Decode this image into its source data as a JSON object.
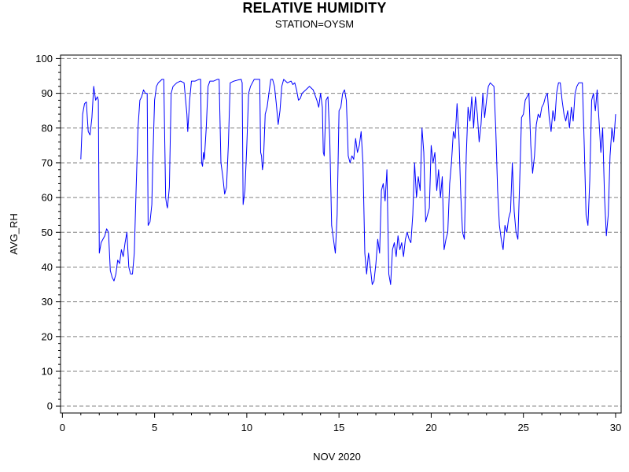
{
  "chart_data": {
    "type": "line",
    "title": "RELATIVE HUMIDITY",
    "subtitle": "STATION=OYSM",
    "xlabel": "NOV 2020",
    "ylabel": "AVG_RH",
    "xlim": [
      -0.1,
      30.3
    ],
    "ylim": [
      -2,
      101
    ],
    "x_ticks": [
      0,
      5,
      10,
      15,
      20,
      25,
      30
    ],
    "y_ticks": [
      0,
      10,
      20,
      30,
      40,
      50,
      60,
      70,
      80,
      90,
      100
    ],
    "grid": "dashed horizontal at y ticks",
    "line_color": "#0000ff",
    "series": [
      {
        "points": [
          [
            1.0,
            71
          ],
          [
            1.1,
            84
          ],
          [
            1.2,
            87
          ],
          [
            1.3,
            87.5
          ],
          [
            1.4,
            79
          ],
          [
            1.5,
            78
          ],
          [
            1.6,
            83
          ],
          [
            1.7,
            92
          ],
          [
            1.8,
            88
          ],
          [
            1.9,
            89
          ],
          [
            1.95,
            88
          ],
          [
            2.0,
            44
          ],
          [
            2.1,
            47
          ],
          [
            2.2,
            48
          ],
          [
            2.3,
            49
          ],
          [
            2.4,
            51
          ],
          [
            2.5,
            50
          ],
          [
            2.6,
            39
          ],
          [
            2.7,
            37
          ],
          [
            2.8,
            36
          ],
          [
            2.9,
            38
          ],
          [
            3.0,
            42
          ],
          [
            3.1,
            41
          ],
          [
            3.2,
            45
          ],
          [
            3.3,
            43
          ],
          [
            3.4,
            47
          ],
          [
            3.5,
            50
          ],
          [
            3.6,
            40
          ],
          [
            3.7,
            38
          ],
          [
            3.8,
            38
          ],
          [
            3.9,
            44
          ],
          [
            4.0,
            63
          ],
          [
            4.1,
            80
          ],
          [
            4.2,
            88
          ],
          [
            4.3,
            89
          ],
          [
            4.4,
            91
          ],
          [
            4.5,
            90
          ],
          [
            4.6,
            90
          ],
          [
            4.65,
            52
          ],
          [
            4.75,
            53
          ],
          [
            4.85,
            58
          ],
          [
            4.9,
            70
          ],
          [
            5.0,
            88
          ],
          [
            5.1,
            92
          ],
          [
            5.2,
            93
          ],
          [
            5.3,
            93.5
          ],
          [
            5.4,
            94
          ],
          [
            5.5,
            94
          ],
          [
            5.6,
            60
          ],
          [
            5.65,
            58
          ],
          [
            5.7,
            57
          ],
          [
            5.8,
            63
          ],
          [
            5.9,
            90
          ],
          [
            6.0,
            92
          ],
          [
            6.2,
            93
          ],
          [
            6.4,
            93.5
          ],
          [
            6.6,
            93
          ],
          [
            6.75,
            84
          ],
          [
            6.8,
            79
          ],
          [
            6.9,
            88
          ],
          [
            7.0,
            93.5
          ],
          [
            7.2,
            93.5
          ],
          [
            7.4,
            94
          ],
          [
            7.5,
            94
          ],
          [
            7.55,
            70
          ],
          [
            7.6,
            69
          ],
          [
            7.65,
            73
          ],
          [
            7.7,
            71
          ],
          [
            7.8,
            80
          ],
          [
            7.9,
            92
          ],
          [
            8.0,
            93.5
          ],
          [
            8.2,
            93.5
          ],
          [
            8.4,
            94
          ],
          [
            8.5,
            94
          ],
          [
            8.6,
            70
          ],
          [
            8.7,
            66
          ],
          [
            8.8,
            61
          ],
          [
            8.9,
            63
          ],
          [
            9.0,
            75
          ],
          [
            9.1,
            93
          ],
          [
            9.3,
            93.5
          ],
          [
            9.5,
            93.8
          ],
          [
            9.7,
            94
          ],
          [
            9.75,
            93
          ],
          [
            9.8,
            58
          ],
          [
            9.9,
            62
          ],
          [
            10.0,
            75
          ],
          [
            10.1,
            90
          ],
          [
            10.2,
            92
          ],
          [
            10.4,
            94
          ],
          [
            10.6,
            94
          ],
          [
            10.7,
            94
          ],
          [
            10.75,
            73
          ],
          [
            10.8,
            72
          ],
          [
            10.85,
            68
          ],
          [
            10.9,
            70
          ],
          [
            11.0,
            84
          ],
          [
            11.1,
            86
          ],
          [
            11.2,
            90
          ],
          [
            11.3,
            94
          ],
          [
            11.4,
            94
          ],
          [
            11.5,
            92
          ],
          [
            11.6,
            87
          ],
          [
            11.7,
            81
          ],
          [
            11.8,
            85
          ],
          [
            11.9,
            92
          ],
          [
            12.0,
            94
          ],
          [
            12.2,
            93
          ],
          [
            12.4,
            93.5
          ],
          [
            12.5,
            92.5
          ],
          [
            12.6,
            93
          ],
          [
            12.7,
            91
          ],
          [
            12.8,
            88
          ],
          [
            12.9,
            88.5
          ],
          [
            13.0,
            90
          ],
          [
            13.2,
            91
          ],
          [
            13.4,
            92
          ],
          [
            13.6,
            91
          ],
          [
            13.8,
            88
          ],
          [
            13.9,
            86
          ],
          [
            14.0,
            90
          ],
          [
            14.1,
            86
          ],
          [
            14.15,
            73
          ],
          [
            14.2,
            72
          ],
          [
            14.3,
            88
          ],
          [
            14.4,
            89
          ],
          [
            14.5,
            77
          ],
          [
            14.6,
            52
          ],
          [
            14.7,
            48
          ],
          [
            14.8,
            44
          ],
          [
            14.9,
            55
          ],
          [
            15.0,
            85
          ],
          [
            15.1,
            86
          ],
          [
            15.2,
            90
          ],
          [
            15.3,
            91
          ],
          [
            15.4,
            88
          ],
          [
            15.5,
            72
          ],
          [
            15.6,
            70
          ],
          [
            15.7,
            72
          ],
          [
            15.8,
            71
          ],
          [
            15.9,
            77
          ],
          [
            16.0,
            73
          ],
          [
            16.1,
            75
          ],
          [
            16.2,
            79
          ],
          [
            16.3,
            70
          ],
          [
            16.4,
            44
          ],
          [
            16.5,
            38
          ],
          [
            16.6,
            44
          ],
          [
            16.7,
            40
          ],
          [
            16.8,
            35
          ],
          [
            16.9,
            36
          ],
          [
            17.0,
            41
          ],
          [
            17.1,
            48
          ],
          [
            17.2,
            44
          ],
          [
            17.3,
            62
          ],
          [
            17.4,
            64
          ],
          [
            17.5,
            59
          ],
          [
            17.6,
            68
          ],
          [
            17.7,
            38
          ],
          [
            17.8,
            35
          ],
          [
            17.9,
            45
          ],
          [
            18.0,
            47
          ],
          [
            18.1,
            43
          ],
          [
            18.2,
            49
          ],
          [
            18.3,
            45
          ],
          [
            18.4,
            47
          ],
          [
            18.5,
            43
          ],
          [
            18.6,
            48
          ],
          [
            18.7,
            50
          ],
          [
            18.8,
            48
          ],
          [
            18.9,
            47
          ],
          [
            19.0,
            55
          ],
          [
            19.1,
            70
          ],
          [
            19.2,
            60
          ],
          [
            19.3,
            66
          ],
          [
            19.4,
            62
          ],
          [
            19.5,
            80
          ],
          [
            19.6,
            73
          ],
          [
            19.7,
            53
          ],
          [
            19.8,
            55
          ],
          [
            19.9,
            57
          ],
          [
            20.0,
            75
          ],
          [
            20.1,
            70
          ],
          [
            20.2,
            73
          ],
          [
            20.3,
            62
          ],
          [
            20.4,
            68
          ],
          [
            20.5,
            60
          ],
          [
            20.6,
            66
          ],
          [
            20.7,
            45
          ],
          [
            20.8,
            48
          ],
          [
            20.9,
            50
          ],
          [
            21.0,
            64
          ],
          [
            21.1,
            70
          ],
          [
            21.2,
            79
          ],
          [
            21.3,
            77
          ],
          [
            21.4,
            87
          ],
          [
            21.5,
            78
          ],
          [
            21.6,
            61
          ],
          [
            21.7,
            50
          ],
          [
            21.8,
            48
          ],
          [
            21.9,
            72
          ],
          [
            22.0,
            86
          ],
          [
            22.1,
            82
          ],
          [
            22.2,
            89
          ],
          [
            22.3,
            80
          ],
          [
            22.4,
            89
          ],
          [
            22.5,
            84
          ],
          [
            22.6,
            76
          ],
          [
            22.7,
            81
          ],
          [
            22.8,
            90
          ],
          [
            22.9,
            83
          ],
          [
            23.0,
            88
          ],
          [
            23.1,
            92
          ],
          [
            23.2,
            93
          ],
          [
            23.4,
            92
          ],
          [
            23.5,
            80
          ],
          [
            23.6,
            62
          ],
          [
            23.7,
            52
          ],
          [
            23.8,
            48
          ],
          [
            23.9,
            45
          ],
          [
            24.0,
            52
          ],
          [
            24.1,
            50
          ],
          [
            24.2,
            54
          ],
          [
            24.3,
            56
          ],
          [
            24.4,
            70
          ],
          [
            24.5,
            56
          ],
          [
            24.6,
            50
          ],
          [
            24.7,
            48
          ],
          [
            24.8,
            65
          ],
          [
            24.9,
            83
          ],
          [
            25.0,
            84
          ],
          [
            25.1,
            88
          ],
          [
            25.2,
            89
          ],
          [
            25.3,
            90
          ],
          [
            25.4,
            75
          ],
          [
            25.5,
            67
          ],
          [
            25.6,
            72
          ],
          [
            25.7,
            81
          ],
          [
            25.8,
            84
          ],
          [
            25.9,
            83
          ],
          [
            26.0,
            86
          ],
          [
            26.1,
            87
          ],
          [
            26.2,
            89
          ],
          [
            26.3,
            90
          ],
          [
            26.4,
            83
          ],
          [
            26.5,
            79
          ],
          [
            26.6,
            85
          ],
          [
            26.7,
            82
          ],
          [
            26.8,
            90
          ],
          [
            26.9,
            93
          ],
          [
            27.0,
            93
          ],
          [
            27.1,
            88
          ],
          [
            27.2,
            84
          ],
          [
            27.3,
            82
          ],
          [
            27.4,
            85
          ],
          [
            27.5,
            80
          ],
          [
            27.6,
            86
          ],
          [
            27.7,
            82
          ],
          [
            27.8,
            90
          ],
          [
            27.9,
            92
          ],
          [
            28.0,
            93
          ],
          [
            28.2,
            93
          ],
          [
            28.3,
            75
          ],
          [
            28.4,
            55
          ],
          [
            28.5,
            52
          ],
          [
            28.6,
            65
          ],
          [
            28.7,
            88
          ],
          [
            28.8,
            90
          ],
          [
            28.9,
            85
          ],
          [
            29.0,
            91
          ],
          [
            29.1,
            82
          ],
          [
            29.2,
            73
          ],
          [
            29.3,
            80
          ],
          [
            29.4,
            60
          ],
          [
            29.5,
            49
          ],
          [
            29.6,
            55
          ],
          [
            29.7,
            72
          ],
          [
            29.8,
            80
          ],
          [
            29.9,
            76
          ],
          [
            30.0,
            84
          ]
        ]
      }
    ]
  }
}
